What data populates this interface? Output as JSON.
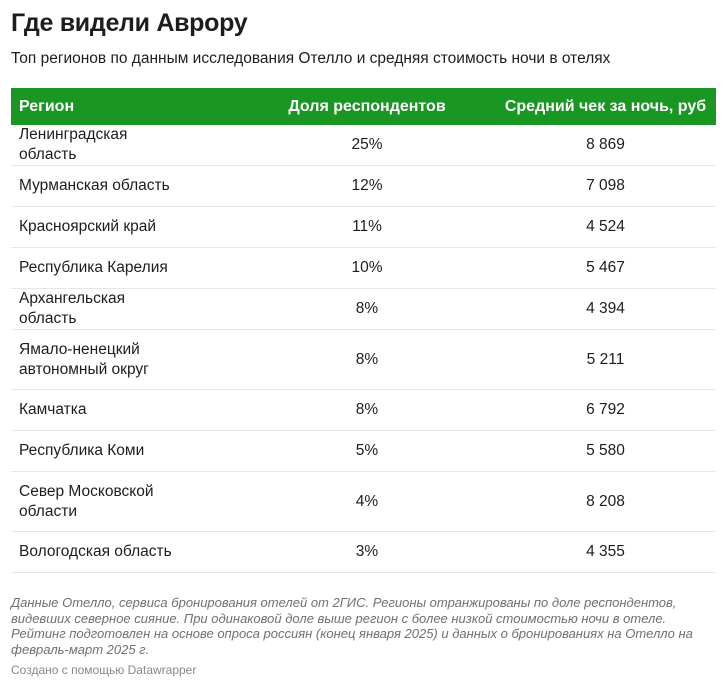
{
  "title": "Где видели Аврору",
  "subtitle": "Топ регионов по данным исследования Отелло и средняя стоимость ночи в отелях",
  "accent": "#1a9623",
  "table": {
    "headers": [
      "Регион",
      "Доля респондентов",
      "Средний чек за ночь, руб"
    ],
    "rows": [
      [
        "Ленинградская область",
        "25%",
        "8 869"
      ],
      [
        "Мурманская область",
        "12%",
        "7 098"
      ],
      [
        "Красноярский край",
        "11%",
        "4 524"
      ],
      [
        "Республика Карелия",
        "10%",
        "5 467"
      ],
      [
        "Архангельская область",
        "8%",
        "4 394"
      ],
      [
        "Ямало-ненецкий автономный округ",
        "8%",
        "5 211"
      ],
      [
        "Камчатка",
        "8%",
        "6 792"
      ],
      [
        "Республика Коми",
        "5%",
        "5 580"
      ],
      [
        "Север Московской области",
        "4%",
        "8 208"
      ],
      [
        "Вологодская область",
        "3%",
        "4 355"
      ]
    ]
  },
  "notes": "Данные Отелло, сервиса бронирования отелей от 2ГИС. Регионы отранжированы по доле респондентов, видевших северное сияние. При одинаковой доле выше регион с более низкой стоимостью ночи в отеле. Рейтинг подготовлен на основе опроса россиян (конец января 2025) и данных о бронированиях на Отелло на февраль-март 2025 г.",
  "credit": "Создано с помощью Datawrapper"
}
